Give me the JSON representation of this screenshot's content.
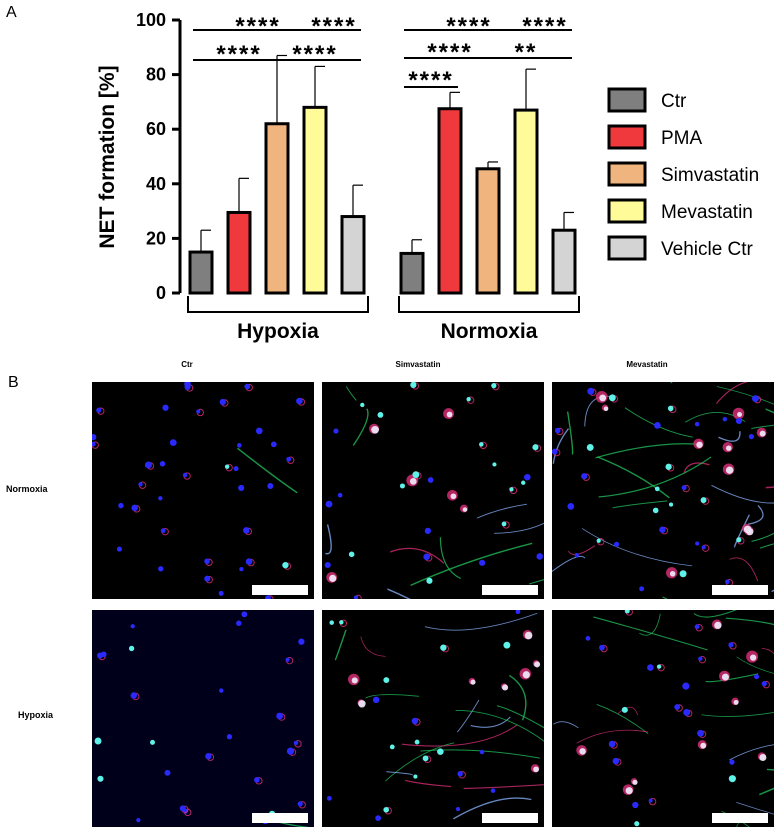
{
  "panel_a_label": "A",
  "panel_b_label": "B",
  "chart_data": {
    "type": "bar",
    "ylabel": "NET formation [%]",
    "ylim": [
      0,
      100
    ],
    "yticks": [
      "0",
      "20",
      "40",
      "60",
      "80",
      "100"
    ],
    "groups": [
      "Hypoxia",
      "Normoxia"
    ],
    "series": [
      {
        "name": "Ctr",
        "color": "#7f7f7f",
        "values": [
          15,
          14.5
        ],
        "errors": [
          8,
          5
        ]
      },
      {
        "name": "PMA",
        "color": "#f0393c",
        "values": [
          29.5,
          67.5
        ],
        "errors": [
          12.5,
          6
        ]
      },
      {
        "name": "Simvastatin",
        "color": "#f0b47e",
        "values": [
          62,
          45.5
        ],
        "errors": [
          25,
          2.5
        ]
      },
      {
        "name": "Mevastatin",
        "color": "#fffb99",
        "values": [
          68,
          67
        ],
        "errors": [
          15,
          15
        ]
      },
      {
        "name": "Vehicle Ctr",
        "color": "#d4d4d4",
        "values": [
          28,
          23
        ],
        "errors": [
          11.5,
          6.5
        ]
      }
    ],
    "significance": {
      "hypoxia": [
        {
          "label": "****",
          "from": 0,
          "to": 2
        },
        {
          "label": "****",
          "from": 0,
          "to": 3
        },
        {
          "label": "****",
          "from": 3,
          "to": 4
        },
        {
          "label": "****",
          "from": 2,
          "to": 4
        }
      ],
      "normoxia": [
        {
          "label": "****",
          "from": 0,
          "to": 1
        },
        {
          "label": "****",
          "from": 0,
          "to": 2
        },
        {
          "label": "****",
          "from": 0,
          "to": 3
        },
        {
          "label": "**",
          "from": 2,
          "to": 4
        },
        {
          "label": "****",
          "from": 3,
          "to": 4
        }
      ]
    },
    "legend_position": "right"
  },
  "micrographs": {
    "columns": [
      "Ctr",
      "Simvastatin",
      "Mevastatin"
    ],
    "rows": [
      "Normoxia",
      "Hypoxia"
    ]
  },
  "colors": {
    "nuclei": "#2a2aff",
    "net_green": "#22c55e",
    "net_red": "#e0307a",
    "cyan": "#5ff2e8",
    "scale_bar": "#ffffff"
  }
}
